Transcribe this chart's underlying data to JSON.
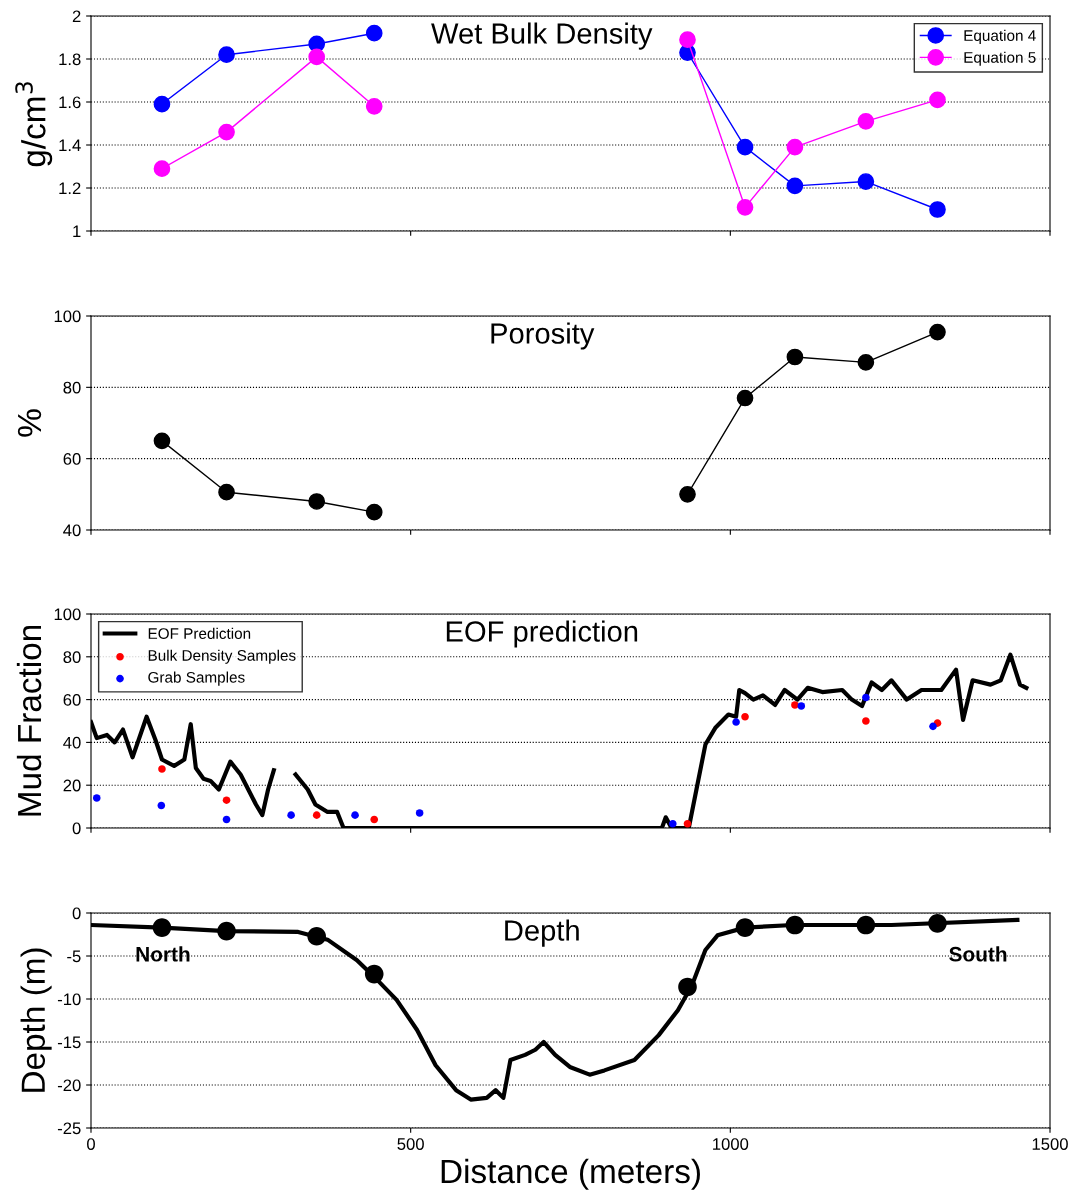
{
  "chart_data": [
    {
      "type": "line",
      "title": "Wet Bulk Density",
      "ylabel": "g/cm$^{3}$",
      "xlim": [
        0,
        1500
      ],
      "xticks": [
        0,
        500,
        1000,
        1500
      ],
      "ylim": [
        1,
        2
      ],
      "yticks": [
        1,
        1.2,
        1.4,
        1.6,
        1.8,
        2
      ],
      "grid": "y",
      "legend": "top right",
      "marker": "circle",
      "line_style": "solid",
      "tick_labels": "y",
      "series": [
        {
          "name": "Equation 4",
          "color": "#0000ff",
          "x": [
            111,
            212,
            353,
            443,
            688,
            933,
            1023,
            1101,
            1212,
            1324
          ],
          "values": [
            1.59,
            1.82,
            1.87,
            1.92,
            null,
            1.83,
            1.39,
            1.21,
            1.23,
            1.1
          ]
        },
        {
          "name": "Equation 5",
          "color": "#ff00ff",
          "x": [
            111,
            212,
            353,
            443,
            688,
            933,
            1023,
            1101,
            1212,
            1324
          ],
          "values": [
            1.29,
            1.46,
            1.81,
            1.58,
            null,
            1.89,
            1.11,
            1.39,
            1.51,
            1.61
          ]
        }
      ]
    },
    {
      "type": "line",
      "title": "Porosity",
      "ylabel": "%",
      "xlim": [
        0,
        1500
      ],
      "xticks": [
        0,
        500,
        1000,
        1500
      ],
      "ylim": [
        40,
        100
      ],
      "yticks": [
        40,
        60,
        80,
        100
      ],
      "grid": "y",
      "marker": "circle",
      "line_style": "solid",
      "tick_labels": "y",
      "series": [
        {
          "color": "#000000",
          "x": [
            111,
            212,
            353,
            443,
            688,
            933,
            1023,
            1101,
            1212,
            1324
          ],
          "values": [
            65,
            50.6,
            48,
            45,
            null,
            50,
            77,
            88.5,
            87,
            95.5
          ]
        }
      ]
    },
    {
      "type": "line",
      "title": "EOF prediction",
      "ylabel": "Mud Fraction",
      "xlim": [
        0,
        1500
      ],
      "xticks": [
        0,
        500,
        1000,
        1500
      ],
      "ylim": [
        0,
        100
      ],
      "yticks": [
        0,
        20,
        40,
        60,
        80,
        100
      ],
      "grid": "y",
      "legend": "top left",
      "line_style": "solid",
      "tick_labels": "y",
      "series": [
        {
          "name": "EOF Prediction",
          "color": "#000000",
          "type": "line",
          "x": [
            0,
            9,
            25,
            37,
            50,
            65,
            87,
            101,
            111,
            130,
            146,
            156,
            164,
            176,
            187,
            200,
            218,
            234,
            246,
            258,
            268,
            277,
            286,
            300,
            320,
            339,
            351,
            370,
            385,
            395,
            893,
            899,
            908,
            935,
            947,
            961,
            977,
            997,
            1009,
            1014,
            1023,
            1036,
            1051,
            1070,
            1085,
            1105,
            1121,
            1144,
            1175,
            1190,
            1206,
            1221,
            1237,
            1252,
            1276,
            1299,
            1330,
            1353,
            1364,
            1379,
            1407,
            1423,
            1438,
            1453,
            1463
          ],
          "values": [
            49.5,
            42,
            43.5,
            40,
            46,
            33,
            52,
            41,
            32,
            29,
            32,
            48.5,
            28,
            23,
            22,
            18,
            31,
            25,
            18,
            11,
            6,
            18,
            27,
            null,
            25,
            18,
            11,
            7.5,
            7.5,
            0,
            0,
            5,
            0,
            0,
            18,
            39,
            47,
            53,
            52,
            64.5,
            63,
            60,
            62,
            57.5,
            64.5,
            60,
            65.5,
            63.5,
            64.5,
            60,
            57,
            68,
            64.5,
            69,
            60,
            64.5,
            64.5,
            74,
            50.5,
            69,
            67,
            69,
            81,
            67,
            65.5
          ]
        },
        {
          "name": "Bulk Density Samples",
          "color": "#ff0000",
          "type": "scatter",
          "x": [
            111,
            212,
            353,
            443,
            933,
            1023,
            1101,
            1212,
            1324
          ],
          "values": [
            27.6,
            13,
            6,
            4,
            2,
            52,
            57.5,
            50,
            49
          ]
        },
        {
          "name": "Grab Samples",
          "color": "#0000ff",
          "type": "scatter",
          "x": [
            9,
            110,
            212,
            313,
            413,
            514,
            910,
            1009,
            1111,
            1212,
            1317
          ],
          "values": [
            14,
            10.5,
            4,
            6,
            6,
            7,
            2,
            49.5,
            57,
            61,
            47.5
          ]
        }
      ]
    },
    {
      "type": "line",
      "title": "Depth",
      "ylabel": "Depth (m)",
      "xlabel": "Distance (meters)",
      "xlim": [
        0,
        1500
      ],
      "xticks": [
        0,
        500,
        1000,
        1500
      ],
      "ylim": [
        -25,
        0
      ],
      "yticks": [
        -25,
        -20,
        -15,
        -10,
        -5,
        0
      ],
      "grid": "y",
      "line_style": "solid",
      "annotations": [
        "North",
        "South"
      ],
      "series": [
        {
          "color": "#000000",
          "type": "line",
          "x": [
            0,
            111,
            212,
            324,
            370,
            416,
            448,
            478,
            510,
            539,
            571,
            594,
            619,
            633,
            645,
            656,
            679,
            695,
            708,
            726,
            749,
            780,
            803,
            850,
            888,
            918,
            940,
            961,
            980,
            1023,
            1098,
            1252,
            1449
          ],
          "values": [
            -1.4,
            -1.7,
            -2.1,
            -2.2,
            -3.1,
            -5.5,
            -7.8,
            -10.1,
            -13.6,
            -17.7,
            -20.6,
            -21.7,
            -21.5,
            -20.6,
            -21.5,
            -17.1,
            -16.5,
            -15.9,
            -15,
            -16.5,
            -17.9,
            -18.8,
            -18.3,
            -17.1,
            -14.2,
            -11.3,
            -8.4,
            -4.3,
            -2.6,
            -1.7,
            -1.4,
            -1.4,
            -0.8
          ]
        },
        {
          "color": "#000000",
          "type": "scatter",
          "x": [
            111,
            212,
            353,
            443,
            933,
            1023,
            1101,
            1212,
            1324
          ],
          "values": [
            -1.7,
            -2.1,
            -2.7,
            -7.1,
            -8.6,
            -1.7,
            -1.4,
            -1.4,
            -1.2
          ]
        }
      ]
    }
  ]
}
